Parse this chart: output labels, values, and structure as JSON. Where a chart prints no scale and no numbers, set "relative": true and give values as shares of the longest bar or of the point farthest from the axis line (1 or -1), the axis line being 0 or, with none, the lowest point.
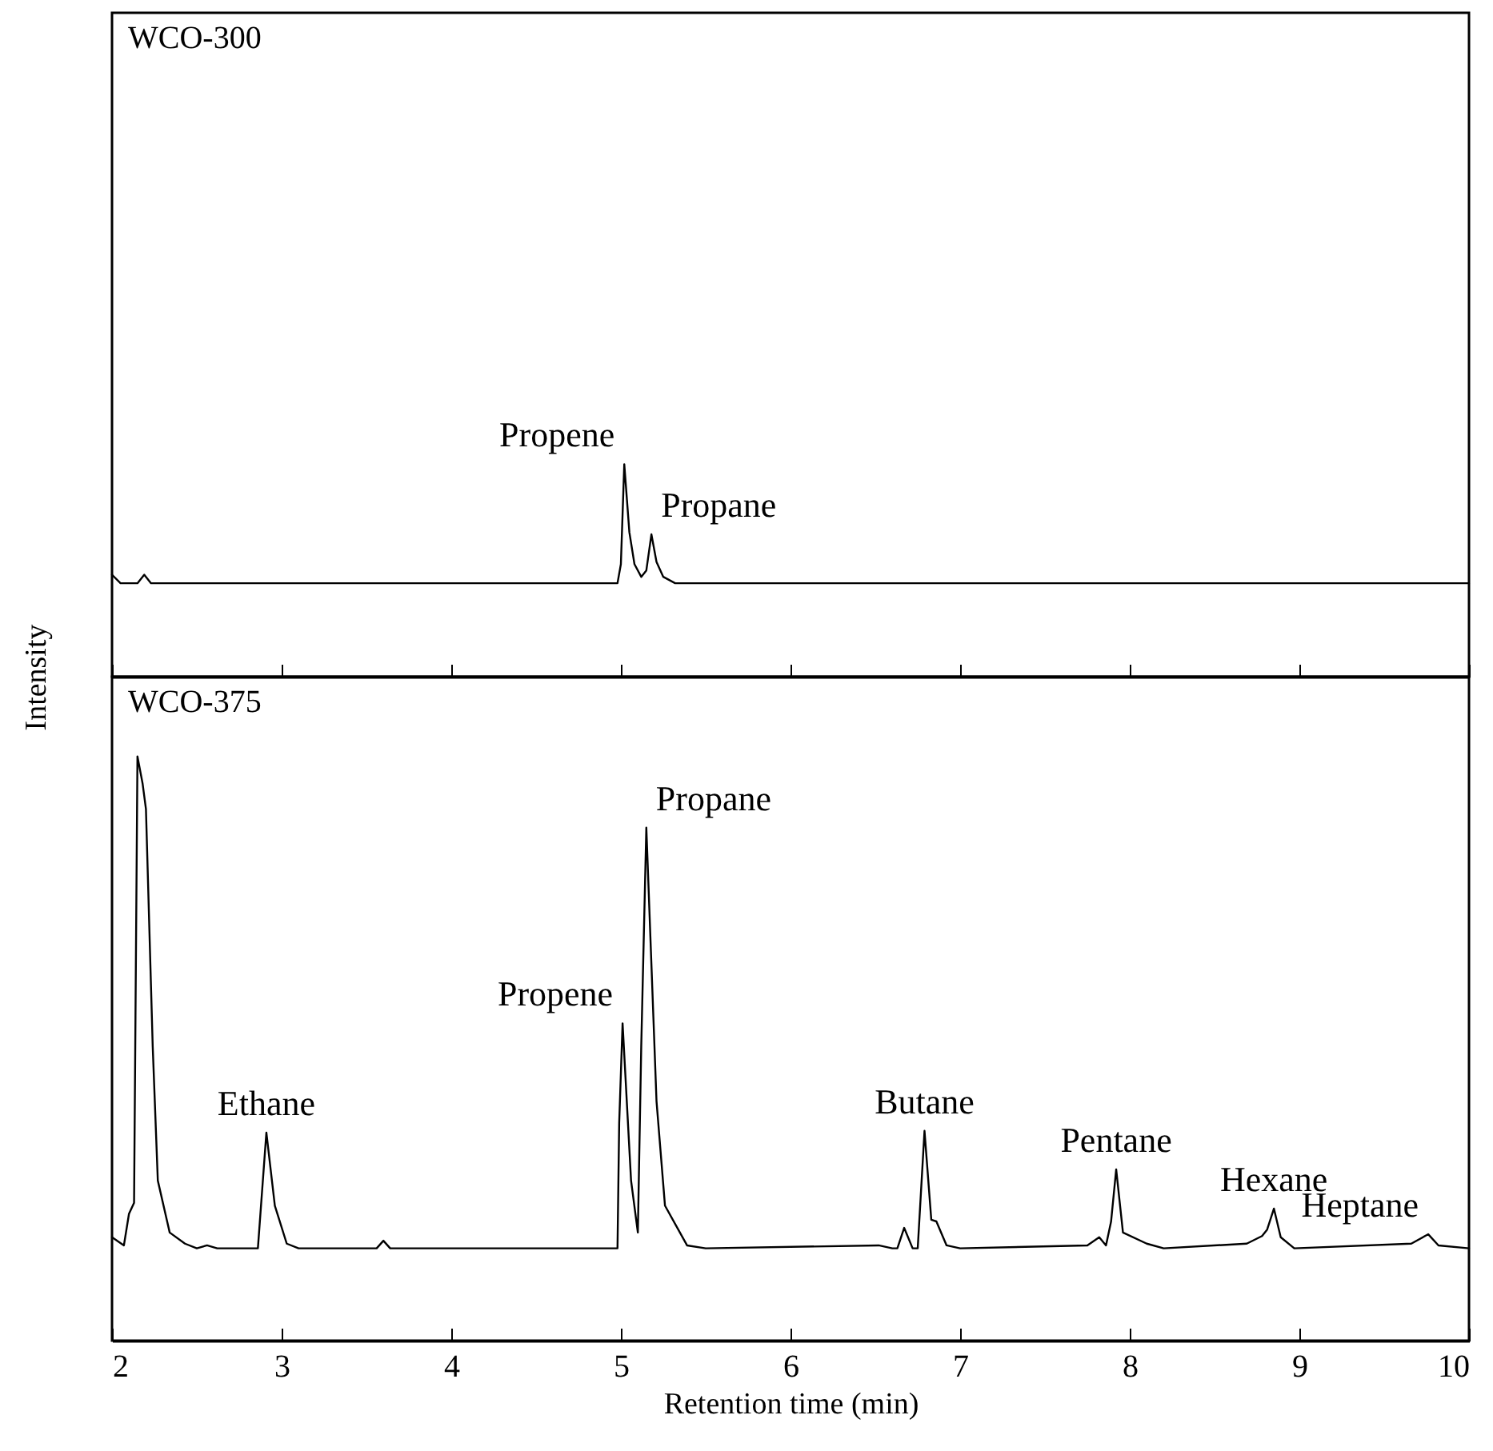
{
  "chart_data": [
    {
      "type": "line",
      "title": "WCO-300",
      "relative": true,
      "xlim": [
        2,
        10
      ],
      "xticks": [
        2,
        3,
        4,
        5,
        6,
        7,
        8,
        9,
        10
      ],
      "tick_labels": false,
      "ylabel": "Intensity",
      "x": [
        2.0,
        2.05,
        2.15,
        2.19,
        2.23,
        4.98,
        5.0,
        5.02,
        5.05,
        5.08,
        5.12,
        5.15,
        5.18,
        5.21,
        5.25,
        5.32,
        5.5,
        10
      ],
      "series": [
        {
          "color": "#000000",
          "values": [
            0.48,
            0.44,
            0.44,
            0.48,
            0.44,
            0.44,
            0.53,
            1,
            0.68,
            0.53,
            0.47,
            0.5,
            0.67,
            0.54,
            0.47,
            0.44,
            0.44,
            0.44
          ]
        }
      ],
      "annotations": [
        {
          "text": "Propene",
          "x": 5.02,
          "y": 1
        },
        {
          "text": "Propane",
          "x": 5.18,
          "y": 0.67
        }
      ]
    },
    {
      "type": "line",
      "title": "WCO-375",
      "relative": true,
      "xlim": [
        2,
        10
      ],
      "xticks": [
        2,
        3,
        4,
        5,
        6,
        7,
        8,
        9,
        10
      ],
      "xlabel": "Retention time (min)",
      "x": [
        2.0,
        2.07,
        2.1,
        2.13,
        2.15,
        2.18,
        2.2,
        2.24,
        2.27,
        2.34,
        2.43,
        2.5,
        2.56,
        2.62,
        2.86,
        2.91,
        2.96,
        3.03,
        3.1,
        3.56,
        3.6,
        3.64,
        4.98,
        4.99,
        5.01,
        5.06,
        5.1,
        5.12,
        5.15,
        5.21,
        5.26,
        5.39,
        5.5,
        6.52,
        6.6,
        6.63,
        6.67,
        6.72,
        6.75,
        6.79,
        6.83,
        6.86,
        6.92,
        7.0,
        7.75,
        7.82,
        7.86,
        7.89,
        7.92,
        7.96,
        8.1,
        8.2,
        8.69,
        8.78,
        8.81,
        8.85,
        8.89,
        8.97,
        9.66,
        9.76,
        9.82,
        10
      ],
      "series": [
        {
          "color": "#000000",
          "values": [
            0.177,
            0.163,
            0.217,
            0.236,
            1,
            0.954,
            0.91,
            0.503,
            0.274,
            0.185,
            0.166,
            0.158,
            0.163,
            0.158,
            0.158,
            0.356,
            0.231,
            0.166,
            0.158,
            0.158,
            0.171,
            0.158,
            0.158,
            0.372,
            0.543,
            0.274,
            0.185,
            0.503,
            0.878,
            0.41,
            0.231,
            0.163,
            0.158,
            0.163,
            0.158,
            0.158,
            0.193,
            0.158,
            0.158,
            0.359,
            0.207,
            0.204,
            0.163,
            0.158,
            0.163,
            0.177,
            0.163,
            0.204,
            0.293,
            0.185,
            0.166,
            0.158,
            0.166,
            0.179,
            0.19,
            0.226,
            0.177,
            0.158,
            0.166,
            0.182,
            0.163,
            0.158
          ]
        }
      ],
      "annotations": [
        {
          "text": "Ethane",
          "x": 2.91,
          "y": 0.356
        },
        {
          "text": "Propene",
          "x": 5.01,
          "y": 0.543
        },
        {
          "text": "Propane",
          "x": 5.15,
          "y": 0.878
        },
        {
          "text": "Butane",
          "x": 6.79,
          "y": 0.359
        },
        {
          "text": "Pentane",
          "x": 7.92,
          "y": 0.293
        },
        {
          "text": "Hexane",
          "x": 8.85,
          "y": 0.226
        },
        {
          "text": "Heptane",
          "x": 9.76,
          "y": 0.182
        }
      ]
    }
  ]
}
